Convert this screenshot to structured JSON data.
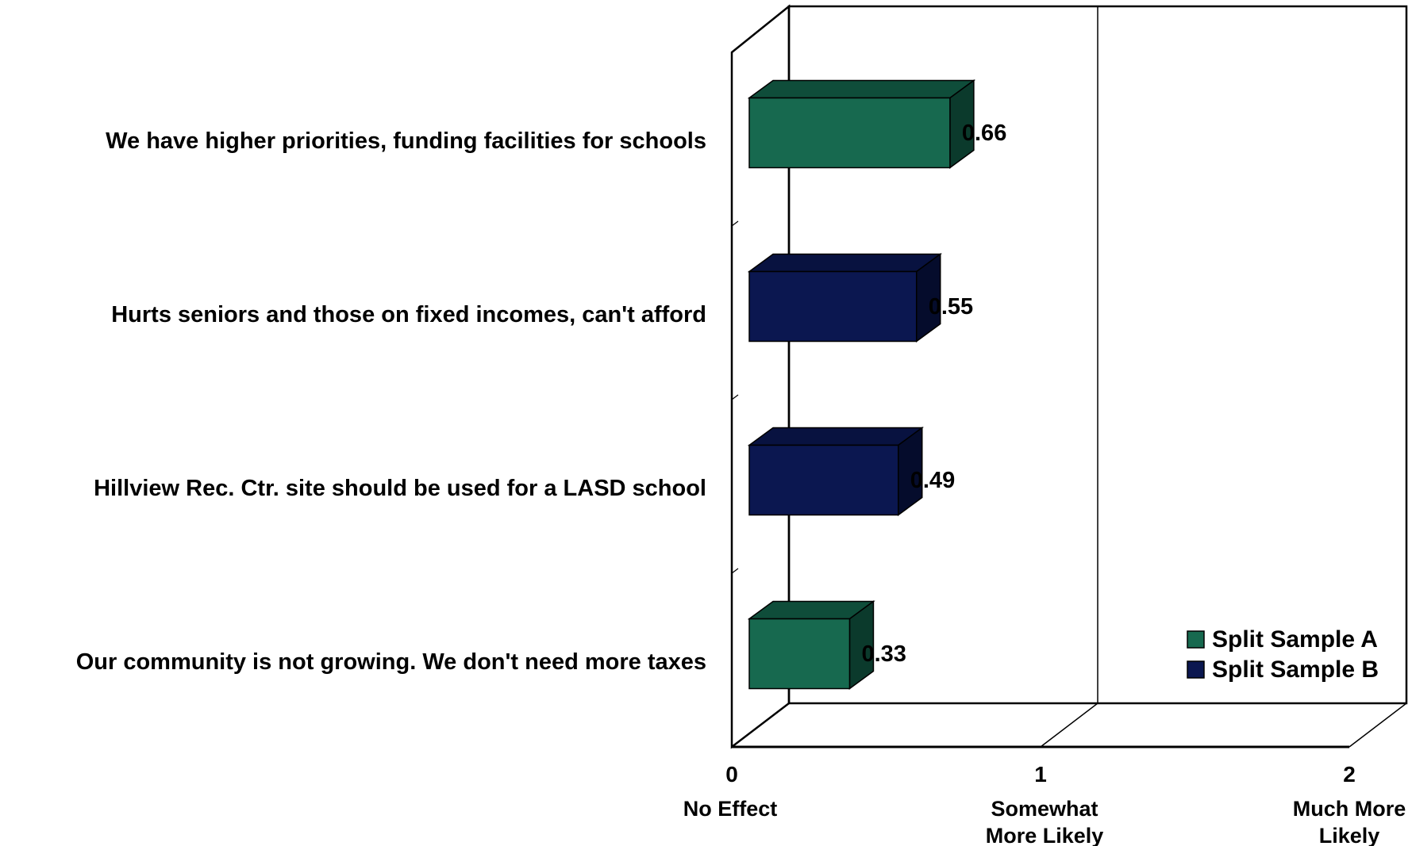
{
  "chart_data": {
    "type": "bar",
    "orientation": "horizontal",
    "three_d": true,
    "categories": [
      "We have higher priorities, funding facilities for schools",
      "Hurts seniors and those on fixed incomes, can't afford",
      "Hillview Rec. Ctr. site should be used for a LASD school",
      "Our community is not growing. We don't need more taxes"
    ],
    "values": [
      0.66,
      0.55,
      0.49,
      0.33
    ],
    "value_labels": [
      "0.66",
      "0.55",
      "0.49",
      "0.33"
    ],
    "bar_series": [
      "Split Sample A",
      "Split Sample B",
      "Split Sample B",
      "Split Sample A"
    ],
    "series": [
      {
        "name": "Split Sample A",
        "color": "#17694f",
        "top_color": "#0f4d3a",
        "side_color": "#0b3a2c"
      },
      {
        "name": "Split Sample B",
        "color": "#0b1750",
        "top_color": "#081240",
        "side_color": "#050c2c"
      }
    ],
    "xlim": [
      0,
      2
    ],
    "x_ticks": [
      {
        "value": 0,
        "label": "0",
        "desc": [
          "No Effect"
        ]
      },
      {
        "value": 1,
        "label": "1",
        "desc": [
          "Somewhat",
          "More  Likely"
        ]
      },
      {
        "value": 2,
        "label": "2",
        "desc": [
          "Much More",
          "Likely"
        ]
      }
    ],
    "title": "",
    "xlabel": "",
    "ylabel": "",
    "legend_position": "bottom-right",
    "grid": "vertical lines at tick values"
  }
}
